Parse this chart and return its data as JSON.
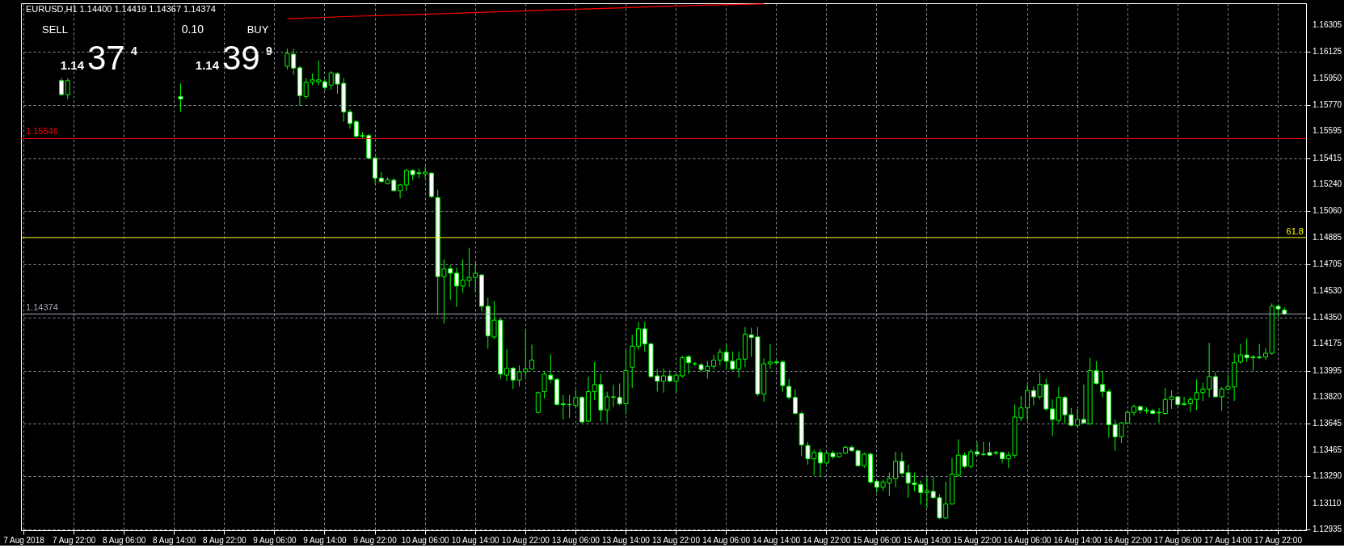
{
  "chart_data": {
    "type": "candlestick",
    "title": "EURUSD,H1  1.14400 1.14419 1.14367 1.14374",
    "categories": [
      "7 Aug 2018",
      null,
      null,
      null,
      null,
      null,
      null,
      null,
      "7 Aug 22:00",
      null,
      null,
      null,
      null,
      null,
      null,
      null,
      "8 Aug 06:00",
      null,
      null,
      null,
      null,
      null,
      null,
      null,
      "8 Aug 14:00",
      null,
      null,
      null,
      null,
      null,
      null,
      null,
      "8 Aug 22:00",
      null,
      null,
      null,
      null,
      null,
      null,
      null,
      "9 Aug 06:00",
      null,
      null,
      null,
      null,
      null,
      null,
      null,
      "9 Aug 14:00",
      null,
      null,
      null,
      null,
      null,
      null,
      null,
      "9 Aug 22:00",
      null,
      null,
      null,
      null,
      null,
      null,
      null,
      "10 Aug 06:00",
      null,
      null,
      null,
      null,
      null,
      null,
      null,
      "10 Aug 14:00",
      null,
      null,
      null,
      null,
      null,
      null,
      null,
      "10 Aug 22:00",
      null,
      null,
      null,
      null,
      null,
      null,
      null,
      "13 Aug 06:00",
      null,
      null,
      null,
      null,
      null,
      null,
      null,
      "13 Aug 14:00",
      null,
      null,
      null,
      null,
      null,
      null,
      null,
      "13 Aug 22:00",
      null,
      null,
      null,
      null,
      null,
      null,
      null,
      "14 Aug 06:00",
      null,
      null,
      null,
      null,
      null,
      null,
      null,
      "14 Aug 14:00",
      null,
      null,
      null,
      null,
      null,
      null,
      null,
      "14 Aug 22:00",
      null,
      null,
      null,
      null,
      null,
      null,
      null,
      "15 Aug 06:00",
      null,
      null,
      null,
      null,
      null,
      null,
      null,
      "15 Aug 14:00",
      null,
      null,
      null,
      null,
      null,
      null,
      null,
      "15 Aug 22:00",
      null,
      null,
      null,
      null,
      null,
      null,
      null,
      "16 Aug 06:00",
      null,
      null,
      null,
      null,
      null,
      null,
      null,
      "16 Aug 14:00",
      null,
      null,
      null,
      null,
      null,
      null,
      null,
      "16 Aug 22:00",
      null,
      null,
      null,
      null,
      null,
      null,
      null,
      "17 Aug 06:00",
      null,
      null,
      null,
      null,
      null,
      null,
      null,
      "17 Aug 14:00",
      null,
      null,
      null,
      null,
      null,
      null,
      null,
      "17 Aug 22:00",
      null,
      null,
      null,
      null
    ],
    "ohlc": [
      null,
      null,
      null,
      null,
      null,
      null,
      [
        1.15933,
        1.1595,
        1.15831,
        1.1584
      ],
      [
        1.1584,
        1.1595,
        1.1581,
        1.15933
      ],
      null,
      null,
      null,
      null,
      null,
      null,
      null,
      null,
      null,
      null,
      null,
      null,
      null,
      null,
      null,
      null,
      null,
      [
        1.15827,
        1.15915,
        1.15724,
        1.1581
      ],
      null,
      null,
      null,
      null,
      null,
      null,
      null,
      null,
      null,
      null,
      null,
      null,
      null,
      null,
      null,
      null,
      [
        1.16029,
        1.16147,
        1.16008,
        1.16115
      ],
      [
        1.1611,
        1.16147,
        1.15973,
        1.16017
      ],
      [
        1.16019,
        1.16031,
        1.15764,
        1.15833
      ],
      [
        1.15827,
        1.1595,
        1.1581,
        1.15922
      ],
      [
        1.15922,
        1.1598,
        1.15903,
        1.15938
      ],
      [
        1.15926,
        1.16066,
        1.15903,
        1.15938
      ],
      [
        1.15926,
        1.15943,
        1.15868,
        1.15887
      ],
      [
        1.15903,
        1.15996,
        1.15873,
        1.15985
      ],
      [
        1.1598,
        1.15989,
        1.15845,
        1.1591
      ],
      [
        1.15915,
        1.1595,
        1.15659,
        1.15724
      ],
      [
        1.15724,
        1.1574,
        1.15612,
        1.15647
      ],
      [
        1.15659,
        1.15671,
        1.15554,
        1.15561
      ],
      [
        1.15566,
        1.15589,
        1.15543,
        1.15561
      ],
      [
        1.15566,
        1.15578,
        1.15408,
        1.15415
      ],
      [
        1.15415,
        1.15426,
        1.15245,
        1.15282
      ],
      [
        1.15282,
        1.15322,
        1.15252,
        1.15259
      ],
      [
        1.15245,
        1.15287,
        1.1524,
        1.1527
      ],
      [
        1.15268,
        1.15282,
        1.15194,
        1.15198
      ],
      [
        1.15198,
        1.15245,
        1.15147,
        1.15236
      ],
      [
        1.15236,
        1.15343,
        1.15198,
        1.15333
      ],
      [
        1.15333,
        1.1534,
        1.15268,
        1.15305
      ],
      [
        1.15317,
        1.15345,
        1.15282,
        1.15312
      ],
      [
        1.1531,
        1.15357,
        1.15282,
        1.15322
      ],
      [
        1.15315,
        1.15322,
        1.15147,
        1.15159
      ],
      [
        1.15152,
        1.15205,
        1.14368,
        1.14624
      ],
      [
        1.14624,
        1.1474,
        1.1431,
        1.14675
      ],
      [
        1.14677,
        1.14701,
        1.14468,
        1.14647
      ],
      [
        1.14647,
        1.14683,
        1.14422,
        1.14561
      ],
      [
        1.14561,
        1.1474,
        1.14515,
        1.14601
      ],
      [
        1.14598,
        1.14817,
        1.14554,
        1.14619
      ],
      [
        1.14619,
        1.14717,
        1.14519,
        1.14647
      ],
      [
        1.14635,
        1.1464,
        1.14391,
        1.14426
      ],
      [
        1.14426,
        1.14484,
        1.14142,
        1.14228
      ],
      [
        1.14221,
        1.14461,
        1.14205,
        1.14333
      ],
      [
        1.14333,
        1.14345,
        1.13942,
        1.13973
      ],
      [
        1.13966,
        1.1414,
        1.13926,
        1.14012
      ],
      [
        1.14012,
        1.14019,
        1.13873,
        1.13933
      ],
      [
        1.13933,
        1.14031,
        1.13891,
        1.13989
      ],
      [
        1.13989,
        1.14268,
        1.13956,
        1.14007
      ],
      [
        1.14007,
        1.1417,
        1.14003,
        1.14066
      ],
      [
        1.13717,
        1.13856,
        1.1371,
        1.13849
      ],
      [
        1.13856,
        1.13989,
        1.1381,
        1.13973
      ],
      [
        1.13966,
        1.14105,
        1.13915,
        1.13938
      ],
      [
        1.13938,
        1.13949,
        1.13763,
        1.1377
      ],
      [
        1.13775,
        1.13833,
        1.1367,
        1.1377
      ],
      [
        1.1377,
        1.13833,
        1.13681,
        1.13768
      ],
      [
        1.13763,
        1.13868,
        1.13747,
        1.13817
      ],
      [
        1.13817,
        1.13826,
        1.13647,
        1.13653
      ],
      [
        1.13658,
        1.13956,
        1.13653,
        1.13856
      ],
      [
        1.13856,
        1.14054,
        1.13798,
        1.13903
      ],
      [
        1.13903,
        1.13973,
        1.13658,
        1.13733
      ],
      [
        1.13733,
        1.13856,
        1.13647,
        1.13821
      ],
      [
        1.13821,
        1.13903,
        1.13752,
        1.13819
      ],
      [
        1.13817,
        1.1391,
        1.13763,
        1.13775
      ],
      [
        1.13775,
        1.14135,
        1.13705,
        1.13996
      ],
      [
        1.14019,
        1.14235,
        1.1388,
        1.14159
      ],
      [
        1.14159,
        1.14321,
        1.14135,
        1.14275
      ],
      [
        1.14275,
        1.14321,
        1.14124,
        1.14175
      ],
      [
        1.14175,
        1.14182,
        1.13949,
        1.13956
      ],
      [
        1.13961,
        1.14007,
        1.13856,
        1.13926
      ],
      [
        1.13926,
        1.14012,
        1.13849,
        1.13961
      ],
      [
        1.13961,
        1.13996,
        1.13919,
        1.13926
      ],
      [
        1.13926,
        1.13973,
        1.13849,
        1.13966
      ],
      [
        1.13961,
        1.14096,
        1.13949,
        1.14082
      ],
      [
        1.14089,
        1.14101,
        1.13973,
        1.14049
      ],
      [
        1.14042,
        1.14054,
        1.14025,
        1.14042
      ],
      [
        1.14035,
        1.14049,
        1.13989,
        1.14003
      ],
      [
        1.13996,
        1.14059,
        1.13942,
        1.14025
      ],
      [
        1.14025,
        1.14101,
        1.14003,
        1.14066
      ],
      [
        1.14066,
        1.14142,
        1.14031,
        1.14119
      ],
      [
        1.14119,
        1.14166,
        1.14003,
        1.14059
      ],
      [
        1.14059,
        1.14124,
        1.13996,
        1.14007
      ],
      [
        1.14007,
        1.14124,
        1.13949,
        1.14073
      ],
      [
        1.14073,
        1.14287,
        1.14019,
        1.1424
      ],
      [
        1.14235,
        1.14282,
        1.14089,
        1.14217
      ],
      [
        1.14221,
        1.14287,
        1.13826,
        1.1384
      ],
      [
        1.1384,
        1.14077,
        1.13787,
        1.14042
      ],
      [
        1.14042,
        1.14175,
        1.14007,
        1.14054
      ],
      [
        1.14054,
        1.14066,
        1.14042,
        1.14049
      ],
      [
        1.14054,
        1.14066,
        1.13856,
        1.13896
      ],
      [
        1.13891,
        1.13942,
        1.13803,
        1.13817
      ],
      [
        1.13817,
        1.13873,
        1.13701,
        1.1371
      ],
      [
        1.1371,
        1.13724,
        1.13426,
        1.135
      ],
      [
        1.13496,
        1.13519,
        1.13368,
        1.13407
      ],
      [
        1.13407,
        1.13468,
        1.13298,
        1.13449
      ],
      [
        1.13449,
        1.13472,
        1.13291,
        1.13379
      ],
      [
        1.13379,
        1.13454,
        1.13373,
        1.13445
      ],
      [
        1.13445,
        1.13461,
        1.13407,
        1.13421
      ],
      [
        1.13421,
        1.13449,
        1.13414,
        1.13445
      ],
      [
        1.13445,
        1.13496,
        1.13438,
        1.13484
      ],
      [
        1.13484,
        1.13496,
        1.13454,
        1.13461
      ],
      [
        1.13461,
        1.13468,
        1.13356,
        1.13361
      ],
      [
        1.13361,
        1.13449,
        1.13345,
        1.13438
      ],
      [
        1.13438,
        1.13449,
        1.1324,
        1.13252
      ],
      [
        1.13256,
        1.13263,
        1.13182,
        1.13217
      ],
      [
        1.13217,
        1.13268,
        1.13193,
        1.13252
      ],
      [
        1.13245,
        1.13314,
        1.13158,
        1.13275
      ],
      [
        1.13275,
        1.13454,
        1.13217,
        1.13391
      ],
      [
        1.13391,
        1.13449,
        1.13298,
        1.1331
      ],
      [
        1.13314,
        1.13368,
        1.13147,
        1.13245
      ],
      [
        1.13245,
        1.13314,
        1.13189,
        1.13235
      ],
      [
        1.13235,
        1.13263,
        1.131,
        1.13182
      ],
      [
        1.13182,
        1.13286,
        1.13077,
        1.13193
      ],
      [
        1.13189,
        1.13286,
        1.13142,
        1.13147
      ],
      [
        1.13147,
        1.1317,
        1.13003,
        1.13012
      ],
      [
        1.13012,
        1.13252,
        1.13007,
        1.13105
      ],
      [
        1.13105,
        1.13414,
        1.13105,
        1.13305
      ],
      [
        1.13298,
        1.13538,
        1.13286,
        1.13431
      ],
      [
        1.13431,
        1.13449,
        1.13345,
        1.13356
      ],
      [
        1.13356,
        1.13472,
        1.13345,
        1.13454
      ],
      [
        1.13454,
        1.13519,
        1.13426,
        1.13438
      ],
      [
        1.13438,
        1.13519,
        1.13426,
        1.13435
      ],
      [
        1.13449,
        1.13519,
        1.13426,
        1.13431
      ],
      [
        1.13449,
        1.13461,
        1.13431,
        1.13445
      ],
      [
        1.13449,
        1.13454,
        1.13375,
        1.13407
      ],
      [
        1.13407,
        1.13454,
        1.13345,
        1.13431
      ],
      [
        1.13431,
        1.1377,
        1.13414,
        1.13686
      ],
      [
        1.13681,
        1.13826,
        1.13658,
        1.13747
      ],
      [
        1.13747,
        1.13903,
        1.13663,
        1.13863
      ],
      [
        1.13863,
        1.13891,
        1.13763,
        1.13821
      ],
      [
        1.13821,
        1.1398,
        1.13803,
        1.13903
      ],
      [
        1.13903,
        1.13942,
        1.13728,
        1.1374
      ],
      [
        1.1374,
        1.13803,
        1.13561,
        1.1367
      ],
      [
        1.13663,
        1.13887,
        1.13647,
        1.13817
      ],
      [
        1.13817,
        1.13826,
        1.1364,
        1.13701
      ],
      [
        1.13701,
        1.13747,
        1.13624,
        1.13631
      ],
      [
        1.13631,
        1.1374,
        1.13617,
        1.1367
      ],
      [
        1.1367,
        1.13903,
        1.1364,
        1.13647
      ],
      [
        1.1364,
        1.14082,
        1.13635,
        1.13996
      ],
      [
        1.13996,
        1.14059,
        1.13903,
        1.1391
      ],
      [
        1.13903,
        1.13996,
        1.13817,
        1.13856
      ],
      [
        1.13856,
        1.13873,
        1.13547,
        1.13635
      ],
      [
        1.13635,
        1.1367,
        1.13461,
        1.13554
      ],
      [
        1.13554,
        1.13653,
        1.13514,
        1.13647
      ],
      [
        1.13647,
        1.13733,
        1.1364,
        1.13717
      ],
      [
        1.13717,
        1.1377,
        1.13693,
        1.13756
      ],
      [
        1.13756,
        1.13763,
        1.1371,
        1.13733
      ],
      [
        1.13733,
        1.13752,
        1.1371,
        1.13728
      ],
      [
        1.13728,
        1.1374,
        1.13705,
        1.1371
      ],
      [
        1.13717,
        1.13747,
        1.13647,
        1.13714
      ],
      [
        1.1371,
        1.1388,
        1.13701,
        1.13803
      ],
      [
        1.13803,
        1.13863,
        1.1374,
        1.13821
      ],
      [
        1.13821,
        1.13826,
        1.13756,
        1.1377
      ],
      [
        1.13775,
        1.13821,
        1.13763,
        1.1377
      ],
      [
        1.13775,
        1.13821,
        1.13717,
        1.13803
      ],
      [
        1.13803,
        1.13938,
        1.13733,
        1.13849
      ],
      [
        1.13849,
        1.13915,
        1.13794,
        1.13873
      ],
      [
        1.13873,
        1.14182,
        1.13817,
        1.13956
      ],
      [
        1.13956,
        1.13985,
        1.13817,
        1.13821
      ],
      [
        1.13821,
        1.13887,
        1.13728,
        1.13873
      ],
      [
        1.13873,
        1.13966,
        1.13863,
        1.13891
      ],
      [
        1.13887,
        1.14112,
        1.13794,
        1.14049
      ],
      [
        1.14054,
        1.14175,
        1.14042,
        1.14101
      ],
      [
        1.14101,
        1.14212,
        1.14054,
        1.14082
      ],
      [
        1.14087,
        1.14101,
        1.13996,
        1.14082
      ],
      [
        1.14087,
        1.14175,
        1.14073,
        1.14082
      ],
      [
        1.14087,
        1.14147,
        1.14066,
        1.14112
      ],
      [
        1.14112,
        1.14445,
        1.14101,
        1.14426
      ],
      [
        1.14426,
        1.14438,
        1.14352,
        1.14408
      ],
      [
        1.144,
        1.14419,
        1.14367,
        1.14374
      ],
      null,
      null,
      null
    ],
    "series": [
      {
        "type": "line",
        "color": "#ff0000",
        "values": [
          null,
          null,
          null,
          null,
          null,
          null,
          null,
          null,
          null,
          null,
          null,
          null,
          null,
          null,
          null,
          null,
          null,
          null,
          null,
          null,
          null,
          null,
          null,
          null,
          null,
          null,
          null,
          null,
          null,
          null,
          null,
          null,
          null,
          null,
          null,
          null,
          null,
          null,
          null,
          null,
          null,
          null,
          1.16345,
          null,
          null,
          null,
          null,
          null,
          null,
          null,
          null,
          1.16361,
          null,
          null,
          null,
          null,
          null,
          null,
          null,
          null,
          null,
          null,
          null,
          null,
          null,
          null,
          null,
          1.1638,
          null,
          null,
          null,
          null,
          null,
          null,
          null,
          null,
          null,
          null,
          null,
          null,
          null,
          null,
          null,
          1.16403,
          null,
          null,
          null,
          null,
          null,
          null,
          null,
          null,
          null,
          null,
          null,
          null,
          null,
          null,
          null,
          null,
          1.16426,
          null,
          null,
          null,
          null,
          null,
          null,
          1.16436,
          null,
          null,
          null,
          null,
          null,
          null,
          null,
          null,
          null,
          null,
          1.16445,
          null,
          null,
          null,
          null,
          null,
          null,
          null,
          null,
          null,
          null,
          null,
          null,
          null,
          null,
          null,
          null,
          null,
          null,
          null,
          null,
          null,
          null,
          null,
          null,
          null,
          null,
          null,
          null,
          null,
          null,
          null,
          null,
          null,
          null,
          null,
          null,
          null,
          null,
          null,
          null,
          null,
          null,
          null,
          null,
          null,
          null,
          null,
          null,
          null,
          null,
          null,
          null,
          null,
          null,
          null,
          null,
          null,
          null,
          null,
          null,
          null,
          null,
          null,
          null,
          null,
          null,
          null,
          null,
          null,
          null,
          null,
          null,
          null,
          null,
          null,
          null,
          null,
          null,
          null,
          null,
          null,
          null,
          null,
          null,
          null,
          null
        ]
      }
    ],
    "ylim": [
      1.1293,
      1.1645
    ],
    "yticks": [
      1.12935,
      {
        "value": 1.1311,
        "label": "1.13110"
      },
      {
        "value": 1.1329,
        "label": "1.13290"
      },
      1.13465,
      1.13645,
      {
        "value": 1.1382,
        "label": "1.13820"
      },
      1.13995,
      1.14175,
      {
        "value": 1.1435,
        "label": "1.14350"
      },
      {
        "value": 1.1453,
        "label": "1.14530"
      },
      1.14705,
      1.14885,
      {
        "value": 1.1506,
        "label": "1.15060"
      },
      {
        "value": 1.1524,
        "label": "1.15240"
      },
      1.15415,
      1.15595,
      {
        "value": 1.1577,
        "label": "1.15770"
      },
      {
        "value": 1.1595,
        "label": "1.15950"
      },
      1.16125,
      1.16305
    ],
    "grid": true,
    "ref_lines": [
      {
        "axis": "y",
        "value": 1.15546,
        "label": "1.15546",
        "color": "#ff0000"
      },
      {
        "axis": "y",
        "value": 1.14885,
        "color": "#ffff00"
      },
      {
        "axis": "y",
        "value": 1.14374,
        "label": "1.14374",
        "color": "#a0a8b8"
      }
    ],
    "annotations": [
      "SELL",
      "0.10",
      "BUY",
      "1.14",
      "37",
      "4",
      "1.14",
      "39",
      "9",
      {
        "text": "61.8",
        "y": 1.14885
      }
    ]
  }
}
